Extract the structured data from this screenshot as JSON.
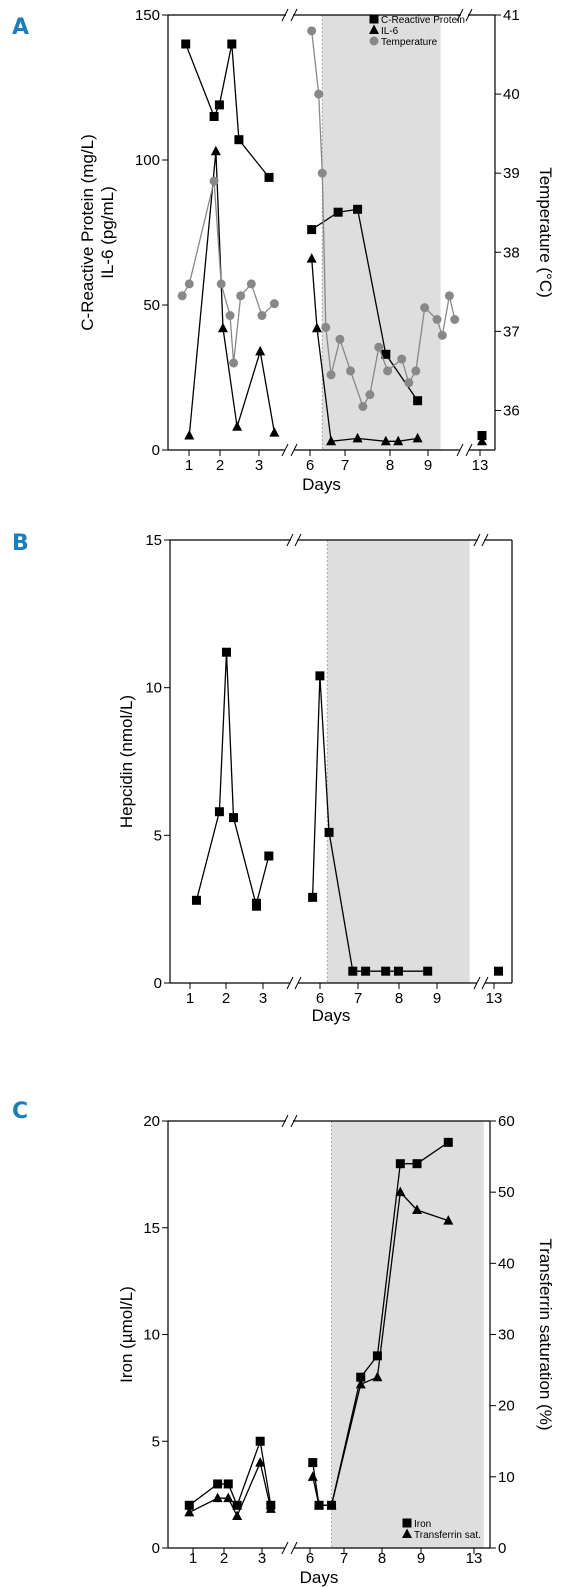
{
  "chart_data": [
    {
      "panel": "A",
      "type": "line",
      "xlabel": "Days",
      "ylabel": [
        "C-Reactive Protein (mg/L)",
        "IL-6 (pg/mL)"
      ],
      "y2label": "Temperature (°C)",
      "ylim": [
        0,
        150
      ],
      "yticks": [
        "0",
        "50",
        "100",
        "150"
      ],
      "y2lim": [
        35.5,
        41
      ],
      "y2ticks": [
        "36",
        "37",
        "38",
        "39",
        "40",
        "41"
      ],
      "xticks": [
        "1",
        "2",
        "3",
        "6",
        "7",
        "8",
        "9",
        "13"
      ],
      "shaded_region": [
        6.3,
        9.65
      ],
      "grid": false,
      "legend_position": "top-right",
      "series": [
        {
          "name": "C-Reactive Protein",
          "marker": "square",
          "color": "#000000",
          "axis": "left",
          "segments": [
            [
              [
                1.0,
                140
              ],
              [
                1.8,
                115
              ],
              [
                1.95,
                119
              ],
              [
                2.3,
                140
              ],
              [
                2.5,
                107
              ],
              [
                3.35,
                94
              ]
            ],
            [
              [
                6.0,
                76
              ],
              [
                6.75,
                82
              ],
              [
                7.3,
                83
              ],
              [
                8.1,
                33
              ],
              [
                9.0,
                17
              ]
            ],
            [
              [
                13.0,
                5
              ]
            ]
          ]
        },
        {
          "name": "IL-6",
          "marker": "triangle",
          "color": "#000000",
          "axis": "left",
          "segments": [
            [
              [
                1.1,
                5
              ],
              [
                1.85,
                103
              ],
              [
                2.05,
                42
              ],
              [
                2.45,
                8
              ],
              [
                3.1,
                34
              ],
              [
                3.5,
                6
              ]
            ],
            [
              [
                6.0,
                66
              ],
              [
                6.15,
                42
              ],
              [
                6.55,
                3
              ],
              [
                7.3,
                4
              ],
              [
                8.1,
                3
              ],
              [
                8.45,
                3
              ],
              [
                9.0,
                4
              ]
            ],
            [
              [
                13.0,
                3
              ]
            ]
          ]
        },
        {
          "name": "Temperature",
          "marker": "circle",
          "color": "#888888",
          "axis": "right",
          "segments": [
            [
              [
                0.9,
                37.45
              ],
              [
                1.1,
                37.6
              ],
              [
                1.8,
                38.9
              ],
              [
                2.0,
                37.6
              ],
              [
                2.25,
                37.2
              ],
              [
                2.35,
                36.6
              ],
              [
                2.55,
                37.45
              ],
              [
                2.85,
                37.6
              ],
              [
                3.15,
                37.2
              ],
              [
                3.5,
                37.35
              ]
            ],
            [
              [
                6.0,
                40.8
              ],
              [
                6.2,
                40.0
              ],
              [
                6.3,
                39.0
              ],
              [
                6.4,
                37.05
              ],
              [
                6.55,
                36.45
              ],
              [
                6.8,
                36.9
              ],
              [
                7.1,
                36.5
              ],
              [
                7.45,
                36.05
              ],
              [
                7.65,
                36.2
              ],
              [
                7.9,
                36.8
              ],
              [
                8.15,
                36.5
              ],
              [
                8.55,
                36.65
              ],
              [
                8.75,
                36.35
              ],
              [
                8.95,
                36.5
              ],
              [
                9.2,
                37.3
              ],
              [
                9.55,
                37.15
              ],
              [
                9.7,
                36.95
              ],
              [
                9.9,
                37.45
              ],
              [
                10.05,
                37.15
              ]
            ]
          ]
        }
      ]
    },
    {
      "panel": "B",
      "type": "line",
      "xlabel": "Days",
      "ylabel": "Hepcidin (nmol/L)",
      "ylim": [
        0,
        15
      ],
      "yticks": [
        "0",
        "5",
        "10",
        "15"
      ],
      "xticks": [
        "1",
        "2",
        "3",
        "6",
        "7",
        "8",
        "9",
        "13"
      ],
      "shaded_region": [
        6.3,
        10.2
      ],
      "grid": false,
      "series": [
        {
          "name": "Hepcidin",
          "marker": "square",
          "color": "#000000",
          "segments": [
            [
              [
                1.25,
                2.8
              ],
              [
                1.9,
                5.8
              ],
              [
                2.1,
                11.2
              ],
              [
                2.3,
                5.6
              ],
              [
                2.95,
                2.6
              ],
              [
                2.95,
                2.7
              ],
              [
                3.3,
                4.3
              ]
            ],
            [
              [
                5.9,
                2.9
              ],
              [
                6.1,
                10.4
              ],
              [
                6.35,
                5.1
              ],
              [
                7.0,
                0.4
              ],
              [
                7.35,
                0.4
              ],
              [
                7.9,
                0.4
              ],
              [
                8.25,
                0.4
              ],
              [
                9.05,
                0.4
              ]
            ],
            [
              [
                13.0,
                0.4
              ]
            ]
          ]
        }
      ]
    },
    {
      "panel": "C",
      "type": "line",
      "xlabel": "Days",
      "ylabel": "Iron (µmol/L)",
      "y2label": "Transferrin saturation (%)",
      "ylim": [
        0,
        20
      ],
      "yticks": [
        "0",
        "5",
        "10",
        "15",
        "20"
      ],
      "y2lim": [
        0,
        60
      ],
      "y2ticks": [
        "0",
        "10",
        "20",
        "30",
        "40",
        "50",
        "60"
      ],
      "xticks": [
        "1",
        "2",
        "3",
        "6",
        "7",
        "8",
        "9",
        "13"
      ],
      "shaded_region": [
        6.4,
        10.05
      ],
      "grid": false,
      "legend_position": "bottom-right",
      "series": [
        {
          "name": "Iron",
          "marker": "square",
          "color": "#000000",
          "axis": "left",
          "segments": [
            [
              [
                1.1,
                2.0
              ],
              [
                1.9,
                3.0
              ],
              [
                2.2,
                3.0
              ],
              [
                2.45,
                2.0
              ],
              [
                3.1,
                5.0
              ],
              [
                3.4,
                2.0
              ]
            ],
            [
              [
                5.95,
                4.0
              ],
              [
                6.1,
                2.0
              ],
              [
                6.4,
                2.0
              ],
              [
                7.1,
                8.0
              ],
              [
                7.5,
                9.0
              ],
              [
                8.05,
                18.0
              ],
              [
                8.45,
                18.0
              ],
              [
                9.2,
                19.0
              ]
            ]
          ]
        },
        {
          "name": "Transferrin sat.",
          "marker": "triangle",
          "color": "#000000",
          "axis": "right",
          "segments": [
            [
              [
                1.1,
                5.0
              ],
              [
                1.9,
                7.0
              ],
              [
                2.2,
                7.0
              ],
              [
                2.45,
                4.5
              ],
              [
                3.1,
                12.0
              ],
              [
                3.4,
                5.5
              ]
            ],
            [
              [
                5.95,
                10.0
              ],
              [
                6.1,
                6.0
              ],
              [
                6.4,
                6.0
              ],
              [
                7.1,
                23.0
              ],
              [
                7.5,
                24.0
              ],
              [
                8.05,
                50.0
              ],
              [
                8.45,
                47.5
              ],
              [
                9.2,
                46.0
              ]
            ]
          ]
        }
      ]
    }
  ]
}
